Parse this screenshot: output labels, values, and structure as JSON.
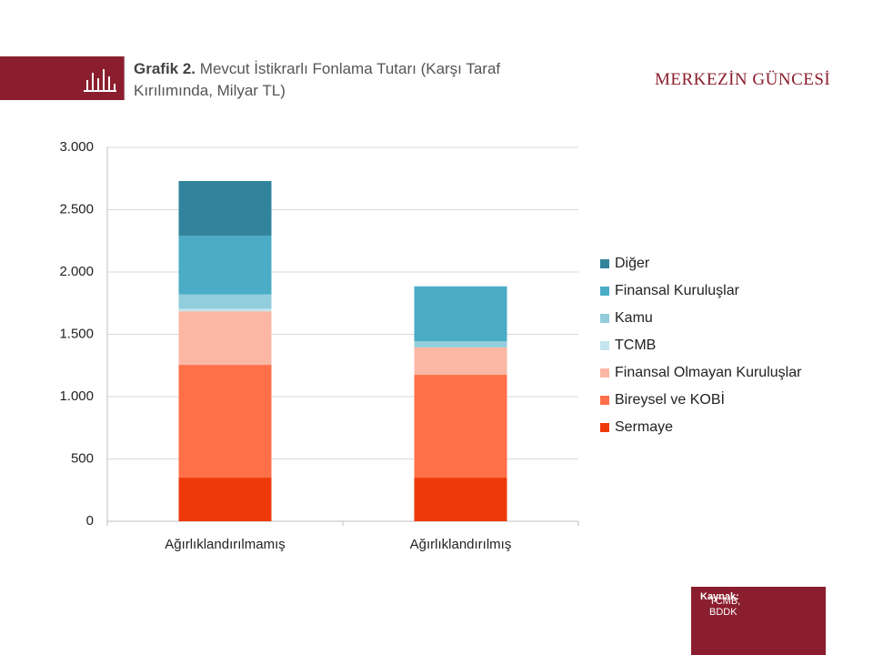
{
  "header": {
    "brand": "MERKEZİN GÜNCESİ"
  },
  "source": {
    "label": "Kaynak:",
    "text": "TCMB, BDDK"
  },
  "chart_data": {
    "type": "stacked_bar",
    "title_label": "Grafik 2.",
    "title": "Mevcut İstikrarlı Fonlama Tutarı (Karşı Taraf Kırılımında, Milyar TL)",
    "categories": [
      "Ağırlıklandırılmamış",
      "Ağırlıklandırılmış"
    ],
    "series": [
      {
        "name": "Sermaye",
        "color": "#ee3a0a",
        "values": [
          350,
          350
        ]
      },
      {
        "name": "Bireysel ve KOBİ",
        "color": "#ff7049",
        "values": [
          905,
          825
        ]
      },
      {
        "name": "Finansal Olmayan Kuruluşlar",
        "color": "#fbb7a3",
        "values": [
          430,
          220
        ]
      },
      {
        "name": "TCMB",
        "color": "#c3e5ee",
        "values": [
          20,
          0
        ]
      },
      {
        "name": "Kamu",
        "color": "#92cddd",
        "values": [
          115,
          50
        ]
      },
      {
        "name": "Finansal Kuruluşlar",
        "color": "#4bacc6",
        "values": [
          470,
          440
        ]
      },
      {
        "name": "Diğer",
        "color": "#31849b",
        "values": [
          440,
          0
        ]
      }
    ],
    "ylim": [
      0,
      3000
    ],
    "yticks": [
      0,
      500,
      {
        "value": 1000,
        "label": "1.000"
      },
      {
        "value": 1500,
        "label": "1.500"
      },
      {
        "value": 2000,
        "label": "2.000"
      },
      {
        "value": 2500,
        "label": "2.500"
      },
      {
        "value": 3000,
        "label": "3.000"
      }
    ],
    "grid": true,
    "legend": "right"
  }
}
